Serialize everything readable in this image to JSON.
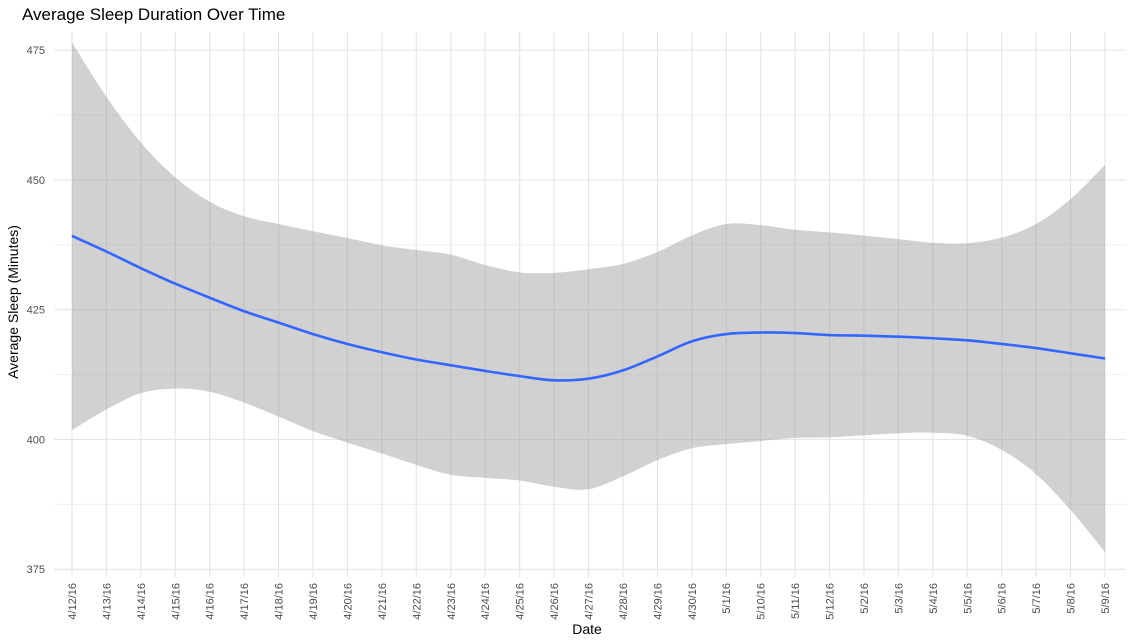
{
  "chart_data": {
    "type": "line",
    "title": "Average Sleep Duration Over Time",
    "xlabel": "Date",
    "ylabel": "Average Sleep (Minutes)",
    "x": [
      "4/12/16",
      "4/13/16",
      "4/14/16",
      "4/15/16",
      "4/16/16",
      "4/17/16",
      "4/18/16",
      "4/19/16",
      "4/20/16",
      "4/21/16",
      "4/22/16",
      "4/23/16",
      "4/24/16",
      "4/25/16",
      "4/26/16",
      "4/27/16",
      "4/28/16",
      "4/29/16",
      "4/30/16",
      "5/1/16",
      "5/10/16",
      "5/11/16",
      "5/12/16",
      "5/2/16",
      "5/3/16",
      "5/4/16",
      "5/5/16",
      "5/6/16",
      "5/7/16",
      "5/8/16",
      "5/9/16"
    ],
    "series": [
      {
        "values": [
          439.2,
          436.2,
          433.0,
          430.0,
          427.3,
          424.7,
          422.5,
          420.3,
          418.4,
          416.8,
          415.4,
          414.3,
          413.2,
          412.2,
          411.4,
          411.7,
          413.3,
          416.0,
          418.9,
          420.3,
          420.6,
          420.5,
          420.1,
          420.0,
          419.8,
          419.5,
          419.1,
          418.4,
          417.6,
          416.6,
          415.6
        ],
        "lower": [
          401.8,
          405.8,
          408.9,
          409.8,
          409.2,
          407.1,
          404.4,
          401.6,
          399.4,
          397.3,
          395.1,
          393.2,
          392.6,
          392.1,
          390.9,
          390.4,
          392.9,
          396.0,
          398.3,
          399.1,
          399.7,
          400.3,
          400.4,
          400.8,
          401.2,
          401.3,
          400.7,
          398.0,
          393.3,
          386.4,
          378.3
        ],
        "upper": [
          476.5,
          466.0,
          457.2,
          450.5,
          445.8,
          443.0,
          441.5,
          440.1,
          438.8,
          437.4,
          436.5,
          435.6,
          433.6,
          432.2,
          432.1,
          432.8,
          433.8,
          436.1,
          439.3,
          441.5,
          441.3,
          440.4,
          439.9,
          439.3,
          438.6,
          437.9,
          437.8,
          438.9,
          441.5,
          446.3,
          452.9
        ]
      }
    ],
    "ylim": [
      373.5,
      478.5
    ],
    "yticks": [
      375,
      400,
      425,
      450,
      475
    ],
    "grid": true,
    "line_color": "#3366ff",
    "band_color": "#999999",
    "legend": "none"
  }
}
